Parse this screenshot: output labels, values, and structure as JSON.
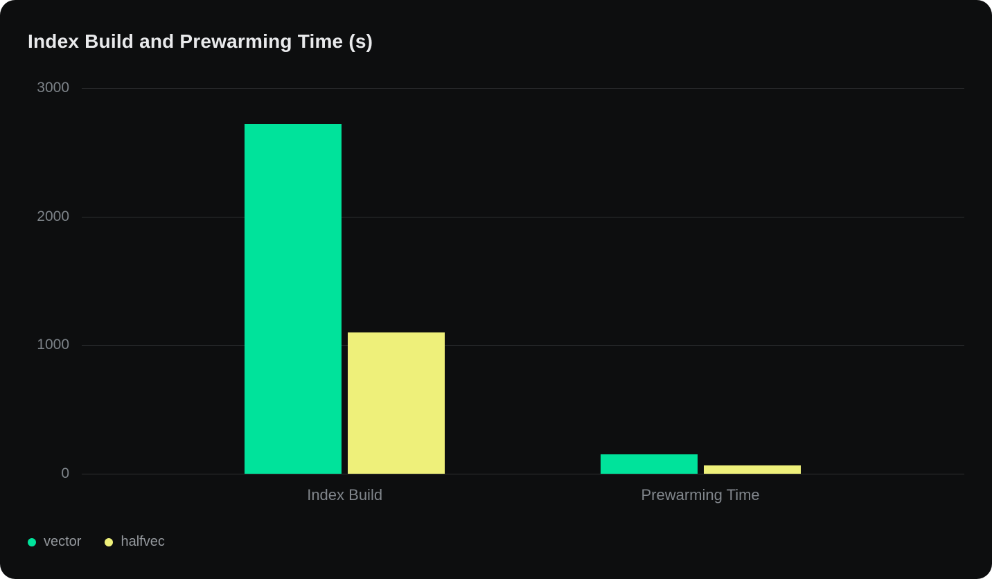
{
  "title": "Index Build and Prewarming Time (s)",
  "chart_data": {
    "type": "bar",
    "title": "Index Build and Prewarming Time (s)",
    "categories": [
      "Index Build",
      "Prewarming Time"
    ],
    "series": [
      {
        "name": "vector",
        "color": "#00e39b",
        "values": [
          2720,
          150
        ]
      },
      {
        "name": "halfvec",
        "color": "#eef07a",
        "values": [
          1100,
          65
        ]
      }
    ],
    "ylabel": "",
    "xlabel": "",
    "ylim": [
      0,
      3000
    ],
    "yticks": [
      0,
      1000,
      2000,
      3000
    ],
    "grid": true,
    "legend_position": "bottom-left"
  },
  "colors": {
    "card_background": "#0d0e0f",
    "page_background": "#ffffff",
    "gridline": "#2e3032",
    "axis_text": "#7d8389",
    "legend_text": "#95999e",
    "title_text": "#e9eaec"
  },
  "legend": {
    "items": [
      {
        "label": "vector",
        "color": "#00e39b"
      },
      {
        "label": "halfvec",
        "color": "#eef07a"
      }
    ]
  }
}
